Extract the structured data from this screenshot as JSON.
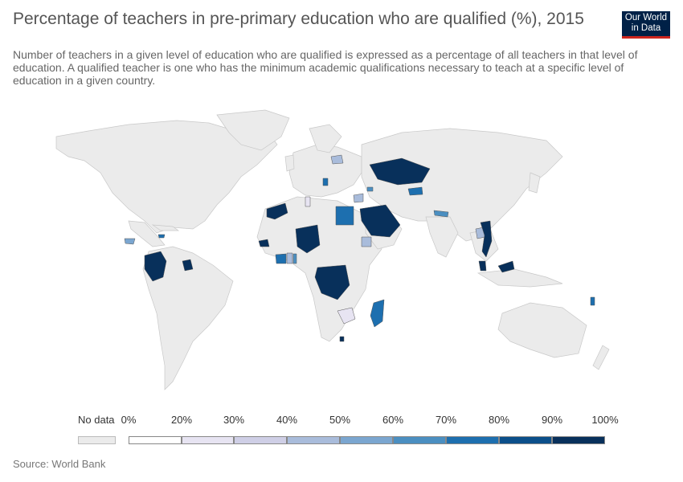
{
  "header": {
    "title": "Percentage of teachers in pre-primary education who are qualified (%), 2015",
    "subtitle": "Number of teachers in a given level of education who are qualified is expressed as a percentage of all teachers in that level of education. A qualified teacher is one who has the minimum academic qualifications necessary to teach at a specific level of education in a given country.",
    "logo_line1": "Our World",
    "logo_line2": "in Data"
  },
  "legend": {
    "no_data_label": "No data",
    "no_data_color": "#ebebeb",
    "ticks": [
      "0%",
      "20%",
      "30%",
      "40%",
      "50%",
      "60%",
      "70%",
      "80%",
      "90%",
      "100%"
    ],
    "bin_colors": [
      "#ffffff",
      "#e7e4f2",
      "#cfcfe6",
      "#a9bcdb",
      "#7ba6d0",
      "#4b8fc1",
      "#1d6faf",
      "#0b4f8a",
      "#08305b"
    ]
  },
  "source": "Source: World Bank",
  "colors": {
    "land": "#ebebeb",
    "border": "#c8c8c8"
  }
}
